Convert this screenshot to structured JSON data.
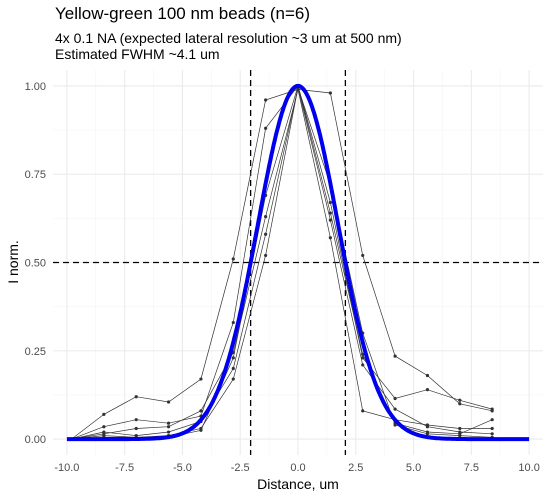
{
  "chart_data": {
    "type": "line",
    "title": "Yellow-green 100 nm beads (n=6)",
    "subtitle_lines": [
      "4x 0.1 NA (expected lateral resolution ~3 um at 500 nm)",
      "Estimated FWHM ~4.1 um"
    ],
    "xlabel": "Distance, um",
    "ylabel": "I norm.",
    "xlim": [
      -10.6,
      10.6
    ],
    "ylim": [
      -0.045,
      1.045
    ],
    "x_ticks": [
      "-10.0",
      "-7.5",
      "-5.0",
      "-2.5",
      "0.0",
      "2.5",
      "5.0",
      "7.5",
      "10.0"
    ],
    "x_tick_values": [
      -10,
      -7.5,
      -5,
      -2.5,
      0,
      2.5,
      5,
      7.5,
      10
    ],
    "y_ticks": [
      "0.00",
      "0.25",
      "0.50",
      "0.75",
      "1.00"
    ],
    "y_tick_values": [
      0,
      0.25,
      0.5,
      0.75,
      1.0
    ],
    "grid": true,
    "series": [
      {
        "x": [
          -9.8,
          -8.4,
          -7.0,
          -5.6,
          -4.2,
          -2.8,
          -1.4,
          0.0,
          1.4,
          2.8,
          4.2,
          5.6,
          7.0,
          8.4
        ],
        "values": [
          0.0,
          0.07,
          0.12,
          0.105,
          0.17,
          0.51,
          0.96,
          0.99,
          0.98,
          0.52,
          0.235,
          0.18,
          0.1,
          0.08
        ]
      },
      {
        "x": [
          -9.8,
          -8.4,
          -7.0,
          -5.6,
          -4.2,
          -2.8,
          -1.4,
          0.0,
          1.4,
          2.8,
          4.2,
          5.6,
          7.0,
          8.4
        ],
        "values": [
          0.0,
          0.035,
          0.055,
          0.045,
          0.065,
          0.33,
          0.88,
          1.0,
          0.67,
          0.23,
          0.115,
          0.14,
          0.11,
          0.085
        ]
      },
      {
        "x": [
          -9.8,
          -8.4,
          -7.0,
          -5.6,
          -4.2,
          -2.8,
          -1.4,
          0.0,
          1.4,
          2.8,
          4.2,
          5.6,
          7.0,
          8.4
        ],
        "values": [
          0.0,
          0.015,
          0.03,
          0.035,
          0.08,
          0.245,
          0.63,
          0.99,
          0.57,
          0.08,
          0.055,
          0.04,
          0.03,
          0.03
        ]
      },
      {
        "x": [
          -9.8,
          -8.4,
          -7.0,
          -5.6,
          -4.2,
          -2.8,
          -1.4,
          0.0,
          1.4,
          2.8,
          4.2,
          5.6,
          7.0,
          8.4
        ],
        "values": [
          0.0,
          0.02,
          0.01,
          0.02,
          0.05,
          0.2,
          0.58,
          0.995,
          0.62,
          0.21,
          0.085,
          0.035,
          0.02,
          0.015
        ]
      },
      {
        "x": [
          -9.8,
          -8.4,
          -7.0,
          -5.6,
          -4.2,
          -2.8,
          -1.4,
          0.0,
          1.4,
          2.8,
          4.2,
          5.6,
          7.0,
          8.4
        ],
        "values": [
          0.0,
          0.005,
          0.005,
          0.01,
          0.03,
          0.17,
          0.52,
          0.995,
          0.72,
          0.3,
          0.04,
          0.015,
          0.01,
          0.005
        ]
      },
      {
        "x": [
          -9.8,
          -8.4,
          -7.0,
          -5.6,
          -4.2,
          -2.8,
          -1.4,
          0.0,
          1.4,
          2.8,
          4.2,
          5.6,
          7.0,
          8.4
        ],
        "values": [
          0.0,
          0.01,
          0.005,
          0.005,
          0.025,
          0.23,
          0.69,
          1.0,
          0.64,
          0.24,
          0.045,
          0.02,
          0.015,
          0.055
        ]
      }
    ],
    "fit": {
      "type": "gaussian",
      "amplitude": 1.0,
      "center": 0.0,
      "fwhm": 4.1,
      "x_range": [
        -10,
        10
      ]
    },
    "reference_lines": {
      "vertical_x": [
        -2.05,
        2.05
      ],
      "horizontal_y": 0.5
    },
    "colors": {
      "data_series": "#333333",
      "fit": "#0000ee",
      "reference": "#000000",
      "grid": "#ebebeb",
      "grid_minor": "#f4f4f4"
    }
  }
}
